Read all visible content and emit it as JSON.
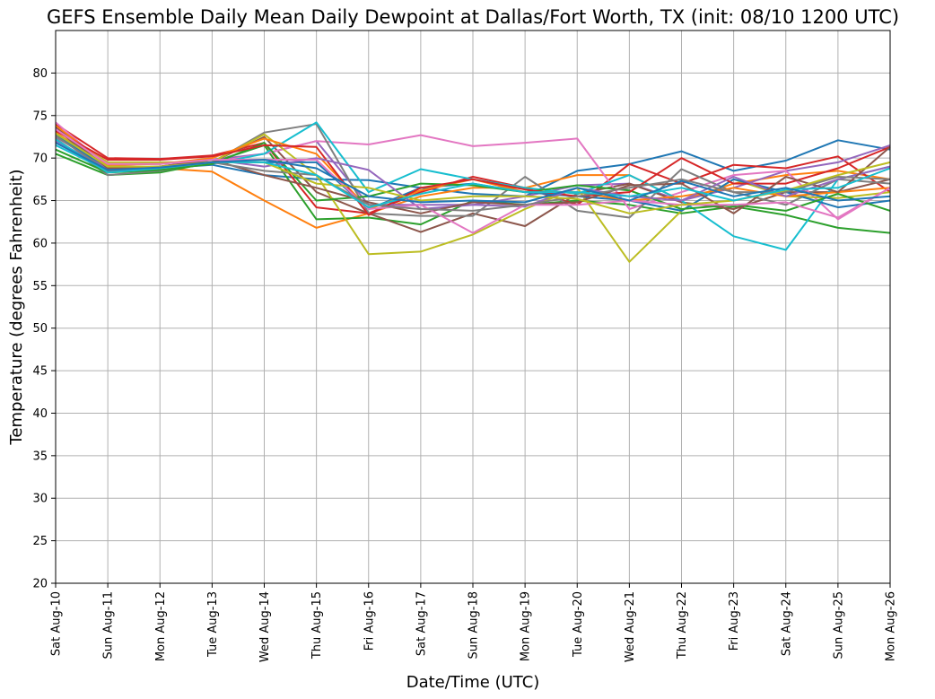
{
  "chart_data": {
    "type": "line",
    "title": "GEFS Ensemble Daily Mean Daily Dewpoint at Dallas/Fort Worth, TX (init: 08/10 1200 UTC)",
    "xlabel": "Date/Time (UTC)",
    "ylabel": "Temperature (degrees Fahrenheit)",
    "ylim": [
      20,
      85
    ],
    "yticks": [
      20,
      25,
      30,
      35,
      40,
      45,
      50,
      55,
      60,
      65,
      70,
      75,
      80
    ],
    "grid": true,
    "categories": [
      "Sat Aug-10",
      "Sun Aug-11",
      "Mon Aug-12",
      "Tue Aug-13",
      "Wed Aug-14",
      "Thu Aug-15",
      "Fri Aug-16",
      "Sat Aug-17",
      "Sun Aug-18",
      "Mon Aug-19",
      "Tue Aug-20",
      "Wed Aug-21",
      "Thu Aug-22",
      "Fri Aug-23",
      "Sat Aug-24",
      "Sun Aug-25",
      "Mon Aug-26"
    ],
    "series": [
      {
        "color": "#1f77b4",
        "values": [
          72.0,
          68.5,
          68.8,
          69.2,
          68.0,
          67.5,
          67.4,
          66.5,
          65.8,
          65.5,
          68.5,
          69.3,
          70.8,
          68.5,
          69.7,
          72.1,
          71.0
        ]
      },
      {
        "color": "#ff7f0e",
        "values": [
          73.0,
          69.0,
          68.8,
          68.4,
          65.0,
          61.8,
          63.5,
          65.5,
          66.5,
          66.5,
          68.0,
          68.0,
          65.0,
          67.0,
          68.0,
          68.5,
          67.5
        ]
      },
      {
        "color": "#2ca02c",
        "values": [
          70.5,
          68.0,
          68.3,
          69.5,
          71.5,
          62.8,
          63.0,
          62.2,
          65.0,
          64.5,
          65.0,
          64.5,
          63.5,
          64.3,
          63.3,
          61.8,
          61.2
        ]
      },
      {
        "color": "#d62728",
        "values": [
          74.0,
          70.0,
          69.9,
          70.3,
          71.8,
          64.2,
          63.5,
          66.0,
          67.8,
          66.5,
          64.5,
          69.3,
          67.0,
          69.2,
          68.8,
          70.2,
          66.0
        ]
      },
      {
        "color": "#9467bd",
        "values": [
          72.5,
          68.8,
          69.0,
          69.8,
          70.5,
          72.0,
          64.5,
          64.5,
          64.5,
          65.5,
          66.8,
          67.0,
          65.0,
          66.5,
          68.5,
          69.5,
          71.5
        ]
      },
      {
        "color": "#8c564b",
        "values": [
          73.5,
          68.5,
          68.8,
          69.5,
          72.5,
          66.0,
          63.5,
          61.3,
          63.5,
          62.0,
          65.8,
          67.0,
          64.8,
          64.0,
          66.0,
          66.0,
          67.5
        ]
      },
      {
        "color": "#e377c2",
        "values": [
          74.2,
          69.0,
          69.5,
          69.5,
          70.5,
          72.0,
          71.6,
          72.7,
          71.4,
          71.8,
          72.3,
          64.0,
          66.0,
          68.0,
          68.5,
          62.8,
          66.5
        ]
      },
      {
        "color": "#7f7f7f",
        "values": [
          72.3,
          68.0,
          68.5,
          69.5,
          73.0,
          74.0,
          63.5,
          63.2,
          63.2,
          67.8,
          63.8,
          63.0,
          68.7,
          66.0,
          64.5,
          67.5,
          67.0
        ]
      },
      {
        "color": "#bcbd22",
        "values": [
          73.3,
          69.5,
          69.5,
          69.5,
          72.8,
          68.0,
          58.7,
          59.0,
          61.0,
          64.0,
          66.5,
          57.8,
          63.8,
          67.5,
          65.5,
          65.3,
          66.0
        ]
      },
      {
        "color": "#17becf",
        "values": [
          71.5,
          68.5,
          68.8,
          69.3,
          70.5,
          74.2,
          66.0,
          68.7,
          67.5,
          66.5,
          65.8,
          68.0,
          65.0,
          60.8,
          59.2,
          67.5,
          69.0
        ]
      },
      {
        "color": "#1f77b4",
        "values": [
          72.8,
          68.7,
          69.0,
          69.5,
          69.5,
          69.5,
          64.0,
          66.5,
          67.0,
          66.0,
          65.5,
          65.0,
          63.8,
          67.5,
          66.0,
          64.2,
          65.0
        ]
      },
      {
        "color": "#ff7f0e",
        "values": [
          73.8,
          69.2,
          69.3,
          70.0,
          72.3,
          70.5,
          64.0,
          66.2,
          67.5,
          66.0,
          66.0,
          65.0,
          65.5,
          66.5,
          65.5,
          66.0,
          66.5
        ]
      },
      {
        "color": "#2ca02c",
        "values": [
          71.0,
          68.3,
          68.6,
          69.3,
          71.8,
          65.0,
          65.5,
          67.0,
          66.8,
          66.0,
          66.8,
          66.2,
          64.0,
          64.5,
          63.8,
          65.8,
          63.8
        ]
      },
      {
        "color": "#d62728",
        "values": [
          73.2,
          69.8,
          69.8,
          70.2,
          71.5,
          71.3,
          63.3,
          66.5,
          67.5,
          66.3,
          65.5,
          66.0,
          70.0,
          67.0,
          67.0,
          68.8,
          71.3
        ]
      },
      {
        "color": "#9467bd",
        "values": [
          72.0,
          68.8,
          69.0,
          69.8,
          69.0,
          70.0,
          68.6,
          64.0,
          64.5,
          64.3,
          66.5,
          65.5,
          65.0,
          67.8,
          65.5,
          67.5,
          69.0
        ]
      },
      {
        "color": "#8c564b",
        "values": [
          73.6,
          68.8,
          69.0,
          69.8,
          68.0,
          66.5,
          64.8,
          63.5,
          64.8,
          64.5,
          64.8,
          66.8,
          67.0,
          63.5,
          67.8,
          66.0,
          71.3
        ]
      },
      {
        "color": "#e377c2",
        "values": [
          73.4,
          69.3,
          69.3,
          69.8,
          69.8,
          69.8,
          64.0,
          64.5,
          61.2,
          64.5,
          64.5,
          65.0,
          64.5,
          64.5,
          64.8,
          63.0,
          66.5
        ]
      },
      {
        "color": "#7f7f7f",
        "values": [
          72.6,
          68.5,
          68.8,
          69.5,
          68.5,
          68.0,
          64.5,
          64.0,
          63.8,
          64.5,
          65.5,
          66.5,
          67.5,
          66.0,
          66.0,
          67.8,
          67.5
        ]
      },
      {
        "color": "#bcbd22",
        "values": [
          72.9,
          69.0,
          69.0,
          69.5,
          69.5,
          67.0,
          66.5,
          65.0,
          65.5,
          65.5,
          65.2,
          63.5,
          64.5,
          65.0,
          66.2,
          68.0,
          69.5
        ]
      },
      {
        "color": "#17becf",
        "values": [
          72.2,
          68.3,
          68.8,
          69.5,
          69.5,
          68.0,
          64.2,
          65.8,
          67.0,
          66.0,
          66.0,
          65.5,
          66.5,
          65.0,
          66.3,
          66.5,
          68.8
        ]
      },
      {
        "color": "#1f77b4",
        "values": [
          71.8,
          68.6,
          68.9,
          69.5,
          69.8,
          68.8,
          65.5,
          64.8,
          65.0,
          64.8,
          66.5,
          65.0,
          67.3,
          65.5,
          66.5,
          65.0,
          65.5
        ]
      }
    ]
  }
}
